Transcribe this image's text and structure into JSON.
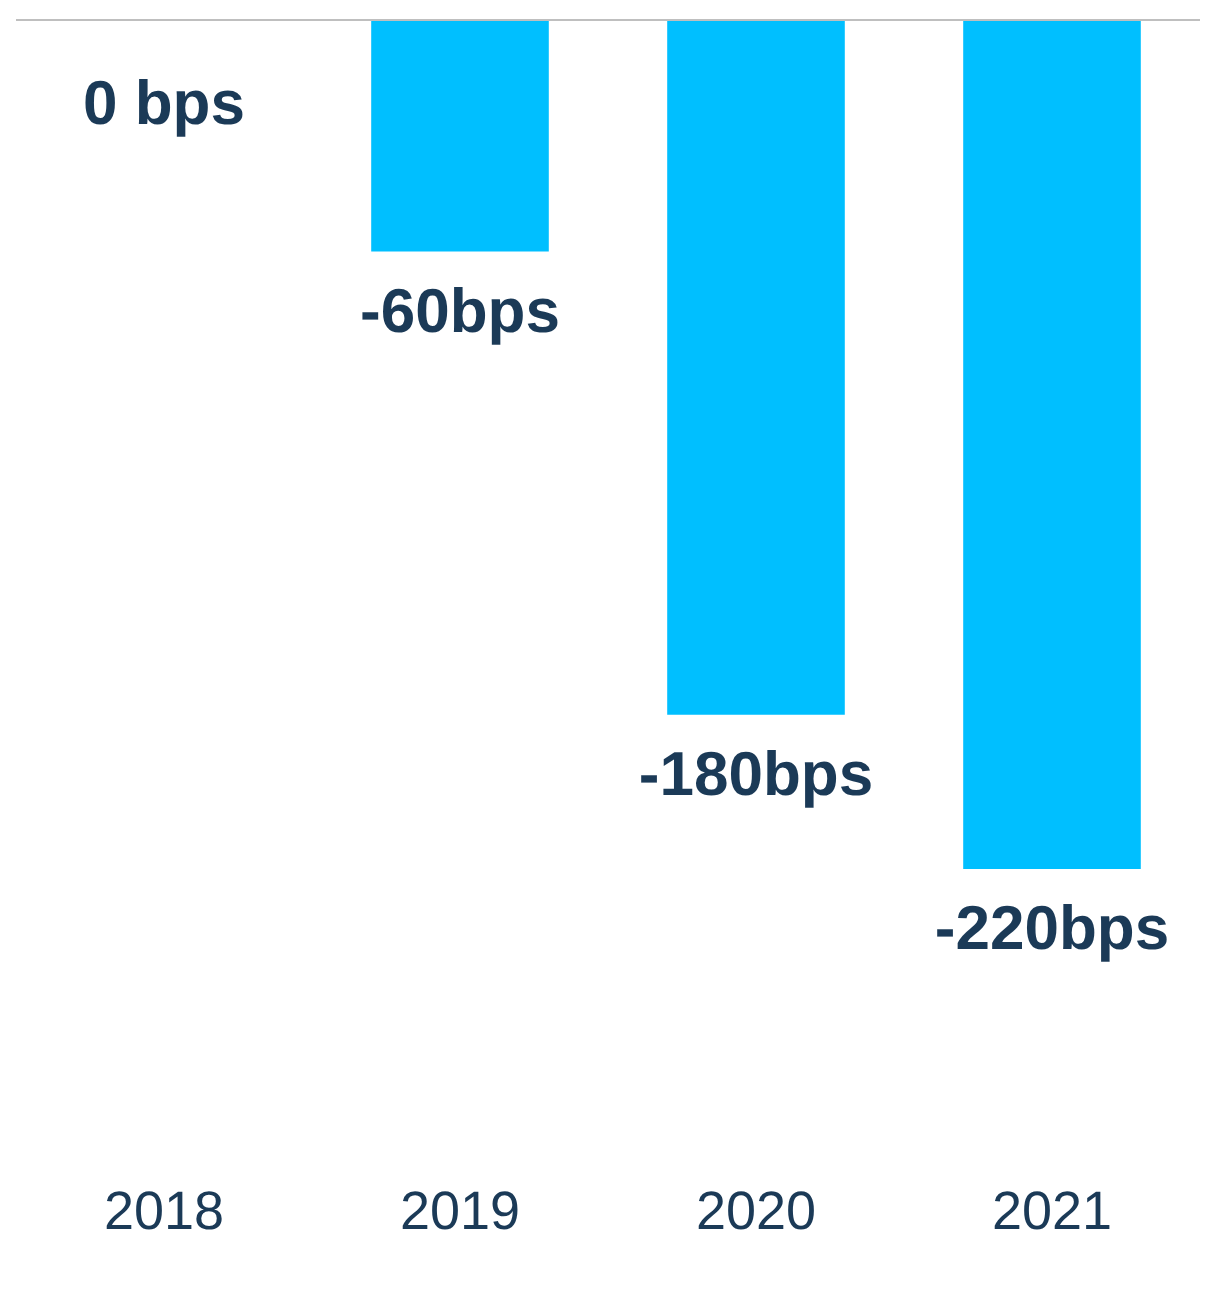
{
  "chart_data": {
    "type": "bar",
    "categories": [
      "2018",
      "2019",
      "2020",
      "2021"
    ],
    "values": [
      0,
      -60,
      -180,
      -220
    ],
    "color": "#00bfff",
    "value_labels": [
      "0 bps",
      "-60bps",
      "-180bps",
      "-220bps"
    ],
    "grid": false,
    "legend": false
  }
}
